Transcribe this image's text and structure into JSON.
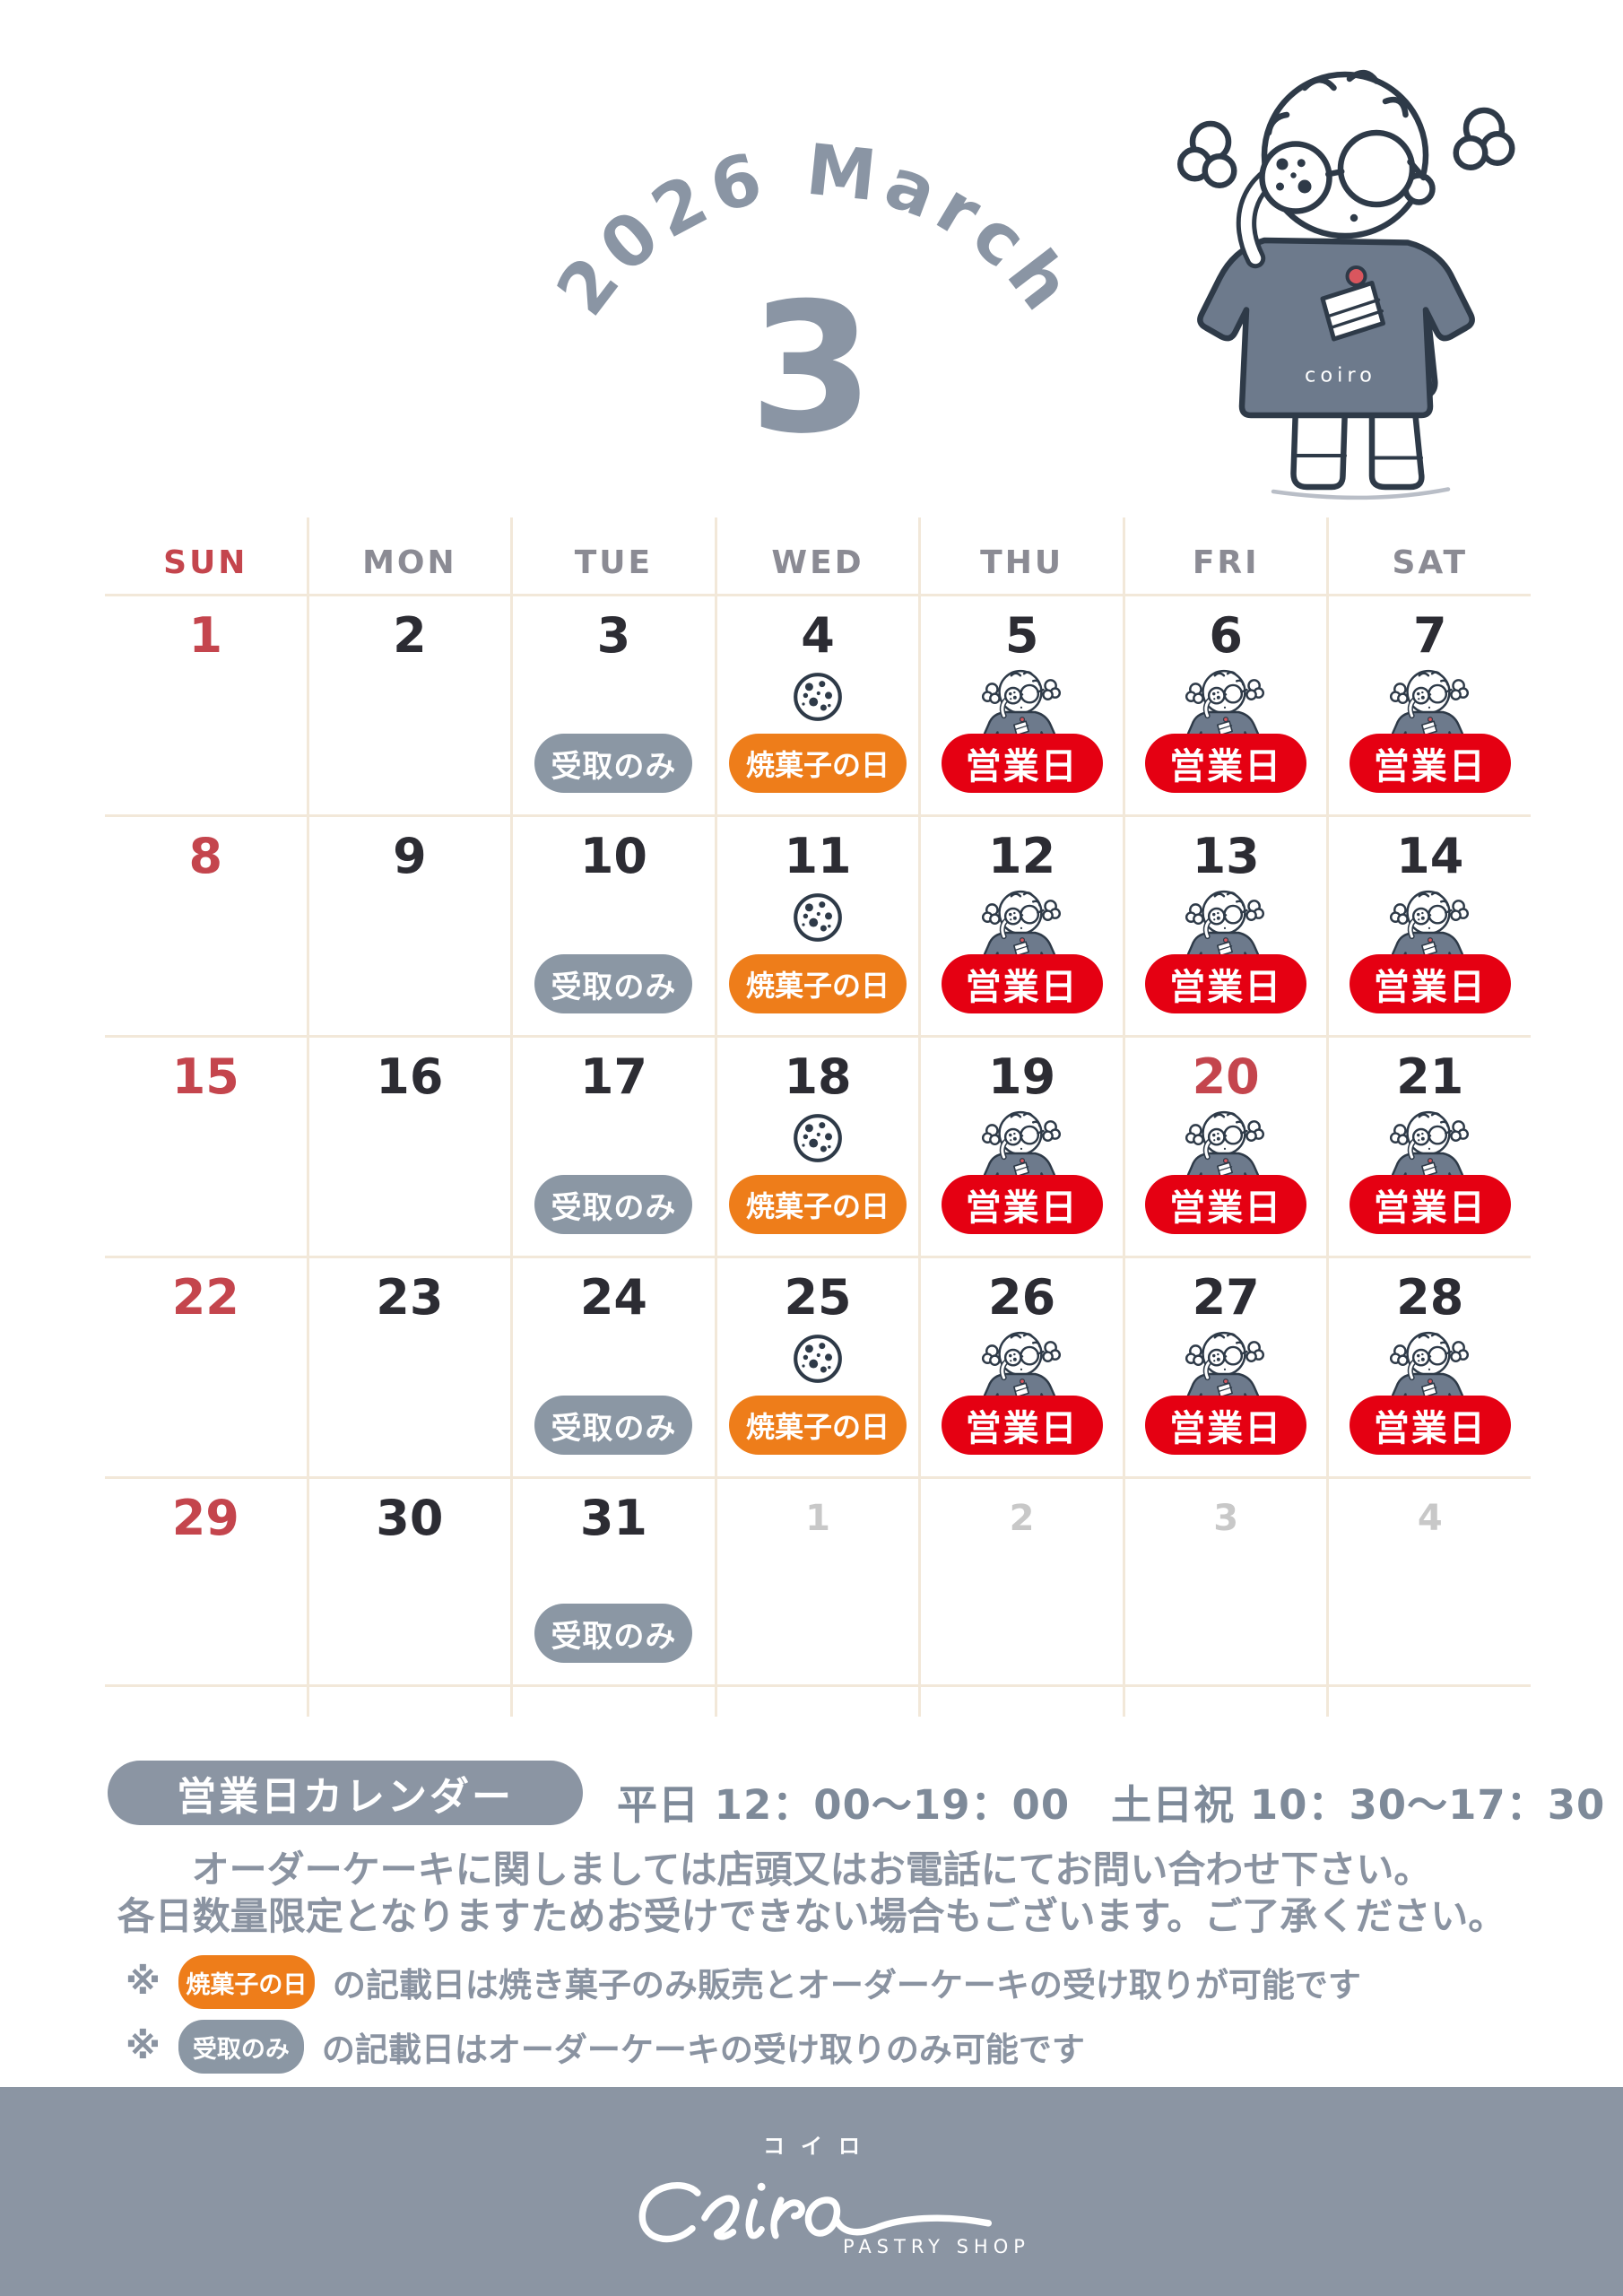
{
  "header": {
    "arc_title": "2026 March",
    "month_number": "3"
  },
  "brand": {
    "name": "coiro",
    "katakana": "コイロ",
    "subtitle": "PASTRY SHOP"
  },
  "weekdays": [
    {
      "label": "SUN",
      "highlight": true
    },
    {
      "label": "MON",
      "highlight": false
    },
    {
      "label": "TUE",
      "highlight": false
    },
    {
      "label": "WED",
      "highlight": false
    },
    {
      "label": "THU",
      "highlight": false
    },
    {
      "label": "FRI",
      "highlight": false
    },
    {
      "label": "SAT",
      "highlight": false
    }
  ],
  "legend_badges": {
    "open": {
      "label": "営業日",
      "bg": "#e50012"
    },
    "baked": {
      "label": "焼菓子の日",
      "bg": "#ee7d1a"
    },
    "pickup": {
      "label": "受取のみ",
      "bg": "#8b97a4"
    }
  },
  "calendar_weeks": [
    [
      {
        "date": "1",
        "tone": "holiday",
        "badge": "none",
        "icon": "none"
      },
      {
        "date": "2",
        "tone": "normal",
        "badge": "none",
        "icon": "none"
      },
      {
        "date": "3",
        "tone": "normal",
        "badge": "pickup",
        "icon": "none"
      },
      {
        "date": "4",
        "tone": "normal",
        "badge": "baked",
        "icon": "cookie"
      },
      {
        "date": "5",
        "tone": "normal",
        "badge": "open",
        "icon": "girl"
      },
      {
        "date": "6",
        "tone": "normal",
        "badge": "open",
        "icon": "girl"
      },
      {
        "date": "7",
        "tone": "normal",
        "badge": "open",
        "icon": "girl"
      }
    ],
    [
      {
        "date": "8",
        "tone": "holiday",
        "badge": "none",
        "icon": "none"
      },
      {
        "date": "9",
        "tone": "normal",
        "badge": "none",
        "icon": "none"
      },
      {
        "date": "10",
        "tone": "normal",
        "badge": "pickup",
        "icon": "none"
      },
      {
        "date": "11",
        "tone": "normal",
        "badge": "baked",
        "icon": "cookie"
      },
      {
        "date": "12",
        "tone": "normal",
        "badge": "open",
        "icon": "girl"
      },
      {
        "date": "13",
        "tone": "normal",
        "badge": "open",
        "icon": "girl"
      },
      {
        "date": "14",
        "tone": "normal",
        "badge": "open",
        "icon": "girl"
      }
    ],
    [
      {
        "date": "15",
        "tone": "holiday",
        "badge": "none",
        "icon": "none"
      },
      {
        "date": "16",
        "tone": "normal",
        "badge": "none",
        "icon": "none"
      },
      {
        "date": "17",
        "tone": "normal",
        "badge": "pickup",
        "icon": "none"
      },
      {
        "date": "18",
        "tone": "normal",
        "badge": "baked",
        "icon": "cookie"
      },
      {
        "date": "19",
        "tone": "normal",
        "badge": "open",
        "icon": "girl"
      },
      {
        "date": "20",
        "tone": "holiday",
        "badge": "open",
        "icon": "girl"
      },
      {
        "date": "21",
        "tone": "normal",
        "badge": "open",
        "icon": "girl"
      }
    ],
    [
      {
        "date": "22",
        "tone": "holiday",
        "badge": "none",
        "icon": "none"
      },
      {
        "date": "23",
        "tone": "normal",
        "badge": "none",
        "icon": "none"
      },
      {
        "date": "24",
        "tone": "normal",
        "badge": "pickup",
        "icon": "none"
      },
      {
        "date": "25",
        "tone": "normal",
        "badge": "baked",
        "icon": "cookie"
      },
      {
        "date": "26",
        "tone": "normal",
        "badge": "open",
        "icon": "girl"
      },
      {
        "date": "27",
        "tone": "normal",
        "badge": "open",
        "icon": "girl"
      },
      {
        "date": "28",
        "tone": "normal",
        "badge": "open",
        "icon": "girl"
      }
    ],
    [
      {
        "date": "29",
        "tone": "holiday",
        "badge": "none",
        "icon": "none"
      },
      {
        "date": "30",
        "tone": "normal",
        "badge": "none",
        "icon": "none"
      },
      {
        "date": "31",
        "tone": "normal",
        "badge": "pickup",
        "icon": "none"
      },
      {
        "date": "1",
        "tone": "muted",
        "badge": "none",
        "icon": "none"
      },
      {
        "date": "2",
        "tone": "muted",
        "badge": "none",
        "icon": "none"
      },
      {
        "date": "3",
        "tone": "muted",
        "badge": "none",
        "icon": "none"
      },
      {
        "date": "4",
        "tone": "muted",
        "badge": "none",
        "icon": "none"
      }
    ]
  ],
  "info": {
    "legend_title": "営業日カレンダー",
    "hours": "平日 12：00〜19：00　土日祝 10：30〜17：30",
    "order_line1": "オーダーケーキに関しましては店頭又はお電話にてお問い合わせ下さい。",
    "order_line2": "各日数量限定となりますためお受けできない場合もございます。ご了承ください。",
    "baked_note_mark": "※",
    "baked_note_text": "の記載日は焼き菓子のみ販売とオーダーケーキの受け取りが可能です",
    "pickup_note_mark": "※",
    "pickup_note_text": "の記載日はオーダーケーキの受け取りのみ可能です"
  },
  "colors": {
    "holiday_red": "#c4454d",
    "open_badge_red": "#e50012",
    "baked_badge_orange": "#ee7d1a",
    "pickup_badge_gray": "#8b97a4",
    "brand_grayblue": "#8b95a3",
    "title_grayblue": "#8a95a4",
    "grid_line": "#f2e8d9",
    "date_dark": "#2c2c33",
    "muted_date": "#c8c8c8",
    "outline_navy": "#2e3a48",
    "shirt_gray": "#6d7a8c"
  }
}
